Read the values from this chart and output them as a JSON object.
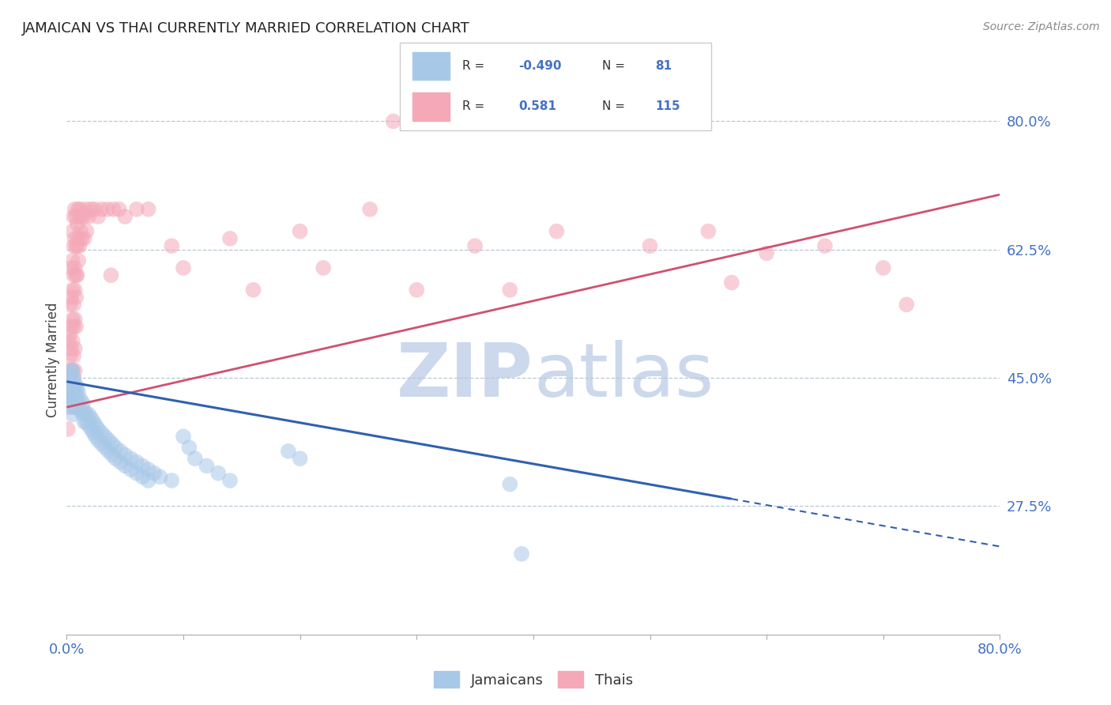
{
  "title": "JAMAICAN VS THAI CURRENTLY MARRIED CORRELATION CHART",
  "source": "Source: ZipAtlas.com",
  "ylabel": "Currently Married",
  "ytick_values": [
    0.8,
    0.625,
    0.45,
    0.275
  ],
  "jamaicans_color": "#a8c8e8",
  "thais_color": "#f4a8b8",
  "jamaicans_line_color": "#3060b0",
  "thais_line_color": "#d05070",
  "background_color": "#ffffff",
  "watermark_color": "#ccd8ec",
  "xmin": 0.0,
  "xmax": 0.8,
  "ymin": 0.1,
  "ymax": 0.85,
  "jamaicans_trendline_solid": {
    "x_start": 0.0,
    "y_start": 0.445,
    "x_end": 0.57,
    "y_end": 0.285
  },
  "jamaicans_trendline_dash": {
    "x_start": 0.57,
    "y_start": 0.285,
    "x_end": 0.8,
    "y_end": 0.22
  },
  "thais_trendline": {
    "x_start": 0.0,
    "y_start": 0.41,
    "x_end": 0.8,
    "y_end": 0.7
  },
  "jamaicans_scatter": [
    [
      0.001,
      0.44
    ],
    [
      0.001,
      0.43
    ],
    [
      0.001,
      0.42
    ],
    [
      0.002,
      0.445
    ],
    [
      0.003,
      0.46
    ],
    [
      0.003,
      0.44
    ],
    [
      0.003,
      0.43
    ],
    [
      0.003,
      0.42
    ],
    [
      0.004,
      0.455
    ],
    [
      0.004,
      0.43
    ],
    [
      0.004,
      0.42
    ],
    [
      0.004,
      0.41
    ],
    [
      0.005,
      0.46
    ],
    [
      0.005,
      0.44
    ],
    [
      0.005,
      0.42
    ],
    [
      0.005,
      0.4
    ],
    [
      0.006,
      0.45
    ],
    [
      0.006,
      0.435
    ],
    [
      0.006,
      0.42
    ],
    [
      0.007,
      0.44
    ],
    [
      0.007,
      0.43
    ],
    [
      0.007,
      0.41
    ],
    [
      0.008,
      0.44
    ],
    [
      0.008,
      0.425
    ],
    [
      0.008,
      0.41
    ],
    [
      0.009,
      0.435
    ],
    [
      0.009,
      0.42
    ],
    [
      0.01,
      0.43
    ],
    [
      0.01,
      0.415
    ],
    [
      0.012,
      0.42
    ],
    [
      0.012,
      0.405
    ],
    [
      0.014,
      0.415
    ],
    [
      0.014,
      0.4
    ],
    [
      0.015,
      0.405
    ],
    [
      0.015,
      0.39
    ],
    [
      0.017,
      0.4
    ],
    [
      0.017,
      0.39
    ],
    [
      0.019,
      0.4
    ],
    [
      0.019,
      0.385
    ],
    [
      0.021,
      0.395
    ],
    [
      0.021,
      0.38
    ],
    [
      0.023,
      0.39
    ],
    [
      0.023,
      0.375
    ],
    [
      0.025,
      0.385
    ],
    [
      0.025,
      0.37
    ],
    [
      0.027,
      0.38
    ],
    [
      0.027,
      0.365
    ],
    [
      0.03,
      0.375
    ],
    [
      0.03,
      0.36
    ],
    [
      0.033,
      0.37
    ],
    [
      0.033,
      0.355
    ],
    [
      0.036,
      0.365
    ],
    [
      0.036,
      0.35
    ],
    [
      0.039,
      0.36
    ],
    [
      0.039,
      0.345
    ],
    [
      0.042,
      0.355
    ],
    [
      0.042,
      0.34
    ],
    [
      0.046,
      0.35
    ],
    [
      0.046,
      0.335
    ],
    [
      0.05,
      0.345
    ],
    [
      0.05,
      0.33
    ],
    [
      0.055,
      0.34
    ],
    [
      0.055,
      0.325
    ],
    [
      0.06,
      0.335
    ],
    [
      0.06,
      0.32
    ],
    [
      0.065,
      0.33
    ],
    [
      0.065,
      0.315
    ],
    [
      0.07,
      0.325
    ],
    [
      0.07,
      0.31
    ],
    [
      0.075,
      0.32
    ],
    [
      0.08,
      0.315
    ],
    [
      0.09,
      0.31
    ],
    [
      0.1,
      0.37
    ],
    [
      0.105,
      0.355
    ],
    [
      0.11,
      0.34
    ],
    [
      0.12,
      0.33
    ],
    [
      0.13,
      0.32
    ],
    [
      0.14,
      0.31
    ],
    [
      0.19,
      0.35
    ],
    [
      0.2,
      0.34
    ],
    [
      0.38,
      0.305
    ],
    [
      0.39,
      0.21
    ]
  ],
  "thais_scatter": [
    [
      0.001,
      0.44
    ],
    [
      0.001,
      0.41
    ],
    [
      0.001,
      0.38
    ],
    [
      0.002,
      0.5
    ],
    [
      0.002,
      0.46
    ],
    [
      0.002,
      0.43
    ],
    [
      0.003,
      0.55
    ],
    [
      0.003,
      0.51
    ],
    [
      0.003,
      0.48
    ],
    [
      0.003,
      0.45
    ],
    [
      0.003,
      0.42
    ],
    [
      0.004,
      0.6
    ],
    [
      0.004,
      0.56
    ],
    [
      0.004,
      0.52
    ],
    [
      0.004,
      0.49
    ],
    [
      0.004,
      0.46
    ],
    [
      0.005,
      0.65
    ],
    [
      0.005,
      0.61
    ],
    [
      0.005,
      0.57
    ],
    [
      0.005,
      0.53
    ],
    [
      0.005,
      0.5
    ],
    [
      0.005,
      0.46
    ],
    [
      0.006,
      0.67
    ],
    [
      0.006,
      0.63
    ],
    [
      0.006,
      0.59
    ],
    [
      0.006,
      0.55
    ],
    [
      0.006,
      0.52
    ],
    [
      0.006,
      0.48
    ],
    [
      0.006,
      0.45
    ],
    [
      0.007,
      0.68
    ],
    [
      0.007,
      0.64
    ],
    [
      0.007,
      0.6
    ],
    [
      0.007,
      0.57
    ],
    [
      0.007,
      0.53
    ],
    [
      0.007,
      0.49
    ],
    [
      0.007,
      0.46
    ],
    [
      0.008,
      0.67
    ],
    [
      0.008,
      0.63
    ],
    [
      0.008,
      0.59
    ],
    [
      0.008,
      0.56
    ],
    [
      0.008,
      0.52
    ],
    [
      0.009,
      0.66
    ],
    [
      0.009,
      0.63
    ],
    [
      0.009,
      0.59
    ],
    [
      0.01,
      0.68
    ],
    [
      0.01,
      0.64
    ],
    [
      0.01,
      0.61
    ],
    [
      0.011,
      0.67
    ],
    [
      0.011,
      0.63
    ],
    [
      0.012,
      0.68
    ],
    [
      0.012,
      0.65
    ],
    [
      0.013,
      0.67
    ],
    [
      0.013,
      0.64
    ],
    [
      0.015,
      0.67
    ],
    [
      0.015,
      0.64
    ],
    [
      0.017,
      0.68
    ],
    [
      0.017,
      0.65
    ],
    [
      0.019,
      0.67
    ],
    [
      0.021,
      0.68
    ],
    [
      0.024,
      0.68
    ],
    [
      0.027,
      0.67
    ],
    [
      0.03,
      0.68
    ],
    [
      0.035,
      0.68
    ],
    [
      0.038,
      0.59
    ],
    [
      0.04,
      0.68
    ],
    [
      0.045,
      0.68
    ],
    [
      0.05,
      0.67
    ],
    [
      0.06,
      0.68
    ],
    [
      0.07,
      0.68
    ],
    [
      0.09,
      0.63
    ],
    [
      0.1,
      0.6
    ],
    [
      0.14,
      0.64
    ],
    [
      0.16,
      0.57
    ],
    [
      0.2,
      0.65
    ],
    [
      0.22,
      0.6
    ],
    [
      0.26,
      0.68
    ],
    [
      0.28,
      0.8
    ],
    [
      0.3,
      0.57
    ],
    [
      0.35,
      0.63
    ],
    [
      0.38,
      0.57
    ],
    [
      0.42,
      0.65
    ],
    [
      0.5,
      0.63
    ],
    [
      0.55,
      0.65
    ],
    [
      0.57,
      0.58
    ],
    [
      0.6,
      0.62
    ],
    [
      0.65,
      0.63
    ],
    [
      0.7,
      0.6
    ],
    [
      0.72,
      0.55
    ]
  ]
}
